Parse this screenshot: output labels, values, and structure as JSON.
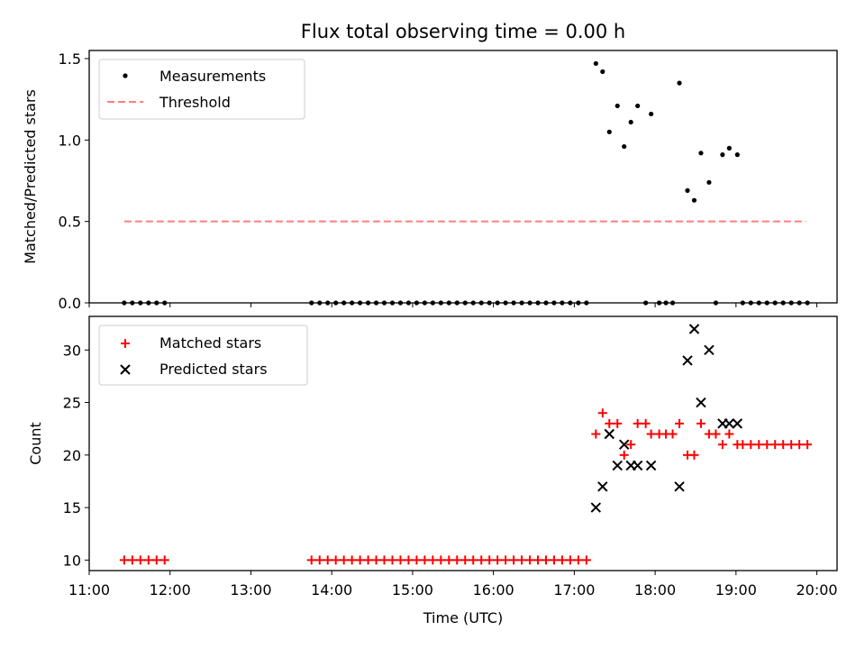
{
  "chart_data": [
    {
      "type": "scatter",
      "title": "Flux total observing time = 0.00 h",
      "xlabel": "",
      "ylabel": "Matched/Predicted stars",
      "xlim_hours": [
        11.0,
        20.25
      ],
      "ylim": [
        0,
        1.55
      ],
      "yticks": [
        "0.0",
        "0.5",
        "1.0",
        "1.5"
      ],
      "ytick_values": [
        0,
        0.5,
        1.0,
        1.5
      ],
      "legend_position": "upper-left",
      "legend": {
        "measurements": "Measurements",
        "threshold": "Threshold"
      },
      "colors": {
        "measurements": "#000000",
        "threshold": "#ff7f7f"
      },
      "threshold": {
        "value": 0.5,
        "x_start": "11:26",
        "x_end": "19:52"
      },
      "series": [
        {
          "name": "Measurements",
          "points": [
            [
              "11:26",
              0
            ],
            [
              "11:32",
              0
            ],
            [
              "11:38",
              0
            ],
            [
              "11:44",
              0
            ],
            [
              "11:50",
              0
            ],
            [
              "11:56",
              0
            ],
            [
              "13:45",
              0
            ],
            [
              "13:51",
              0
            ],
            [
              "13:57",
              0
            ],
            [
              "14:03",
              0
            ],
            [
              "14:09",
              0
            ],
            [
              "14:15",
              0
            ],
            [
              "14:21",
              0
            ],
            [
              "14:27",
              0
            ],
            [
              "14:33",
              0
            ],
            [
              "14:39",
              0
            ],
            [
              "14:45",
              0
            ],
            [
              "14:51",
              0
            ],
            [
              "14:57",
              0
            ],
            [
              "15:03",
              0
            ],
            [
              "15:09",
              0
            ],
            [
              "15:15",
              0
            ],
            [
              "15:21",
              0
            ],
            [
              "15:27",
              0
            ],
            [
              "15:33",
              0
            ],
            [
              "15:39",
              0
            ],
            [
              "15:45",
              0
            ],
            [
              "15:51",
              0
            ],
            [
              "15:57",
              0
            ],
            [
              "16:03",
              0
            ],
            [
              "16:09",
              0
            ],
            [
              "16:15",
              0
            ],
            [
              "16:21",
              0
            ],
            [
              "16:27",
              0
            ],
            [
              "16:33",
              0
            ],
            [
              "16:39",
              0
            ],
            [
              "16:45",
              0
            ],
            [
              "16:51",
              0
            ],
            [
              "16:57",
              0
            ],
            [
              "17:03",
              0
            ],
            [
              "17:09",
              0
            ],
            [
              "17:16",
              1.47
            ],
            [
              "17:21",
              1.42
            ],
            [
              "17:26",
              1.05
            ],
            [
              "17:32",
              1.21
            ],
            [
              "17:37",
              0.96
            ],
            [
              "17:42",
              1.11
            ],
            [
              "17:47",
              1.21
            ],
            [
              "17:53",
              0
            ],
            [
              "17:57",
              1.16
            ],
            [
              "18:03",
              0
            ],
            [
              "18:08",
              0
            ],
            [
              "18:13",
              0
            ],
            [
              "18:18",
              1.35
            ],
            [
              "18:24",
              0.69
            ],
            [
              "18:29",
              0.63
            ],
            [
              "18:34",
              0.92
            ],
            [
              "18:40",
              0.74
            ],
            [
              "18:45",
              0
            ],
            [
              "18:50",
              0.91
            ],
            [
              "18:55",
              0.95
            ],
            [
              "19:01",
              0.91
            ],
            [
              "19:05",
              0
            ],
            [
              "19:11",
              0
            ],
            [
              "19:17",
              0
            ],
            [
              "19:23",
              0
            ],
            [
              "19:29",
              0
            ],
            [
              "19:35",
              0
            ],
            [
              "19:41",
              0
            ],
            [
              "19:47",
              0
            ],
            [
              "19:53",
              0
            ]
          ]
        }
      ]
    },
    {
      "type": "scatter",
      "title": "",
      "xlabel": "Time (UTC)",
      "ylabel": "Count",
      "xlim_hours": [
        11.0,
        20.25
      ],
      "ylim": [
        9,
        33.2
      ],
      "yticks": [
        "10",
        "15",
        "20",
        "25",
        "30"
      ],
      "ytick_values": [
        10,
        15,
        20,
        25,
        30
      ],
      "xticks": [
        "11:00",
        "12:00",
        "13:00",
        "14:00",
        "15:00",
        "16:00",
        "17:00",
        "18:00",
        "19:00",
        "20:00"
      ],
      "legend_position": "upper-left",
      "colors": {
        "matched": "#ff0000",
        "predicted": "#000000"
      },
      "series": [
        {
          "name": "Matched stars",
          "points": [
            [
              "11:26",
              10
            ],
            [
              "11:32",
              10
            ],
            [
              "11:38",
              10
            ],
            [
              "11:44",
              10
            ],
            [
              "11:50",
              10
            ],
            [
              "11:56",
              10
            ],
            [
              "13:45",
              10
            ],
            [
              "13:51",
              10
            ],
            [
              "13:57",
              10
            ],
            [
              "14:03",
              10
            ],
            [
              "14:09",
              10
            ],
            [
              "14:15",
              10
            ],
            [
              "14:21",
              10
            ],
            [
              "14:27",
              10
            ],
            [
              "14:33",
              10
            ],
            [
              "14:39",
              10
            ],
            [
              "14:45",
              10
            ],
            [
              "14:51",
              10
            ],
            [
              "14:57",
              10
            ],
            [
              "15:03",
              10
            ],
            [
              "15:09",
              10
            ],
            [
              "15:15",
              10
            ],
            [
              "15:21",
              10
            ],
            [
              "15:27",
              10
            ],
            [
              "15:33",
              10
            ],
            [
              "15:39",
              10
            ],
            [
              "15:45",
              10
            ],
            [
              "15:51",
              10
            ],
            [
              "15:57",
              10
            ],
            [
              "16:03",
              10
            ],
            [
              "16:09",
              10
            ],
            [
              "16:15",
              10
            ],
            [
              "16:21",
              10
            ],
            [
              "16:27",
              10
            ],
            [
              "16:33",
              10
            ],
            [
              "16:39",
              10
            ],
            [
              "16:45",
              10
            ],
            [
              "16:51",
              10
            ],
            [
              "16:57",
              10
            ],
            [
              "17:03",
              10
            ],
            [
              "17:09",
              10
            ],
            [
              "17:16",
              22
            ],
            [
              "17:21",
              24
            ],
            [
              "17:26",
              23
            ],
            [
              "17:32",
              23
            ],
            [
              "17:37",
              20
            ],
            [
              "17:42",
              21
            ],
            [
              "17:47",
              23
            ],
            [
              "17:53",
              23
            ],
            [
              "17:57",
              22
            ],
            [
              "18:03",
              22
            ],
            [
              "18:08",
              22
            ],
            [
              "18:13",
              22
            ],
            [
              "18:18",
              23
            ],
            [
              "18:24",
              20
            ],
            [
              "18:29",
              20
            ],
            [
              "18:34",
              23
            ],
            [
              "18:40",
              22
            ],
            [
              "18:45",
              22
            ],
            [
              "18:50",
              21
            ],
            [
              "18:55",
              22
            ],
            [
              "19:01",
              21
            ],
            [
              "19:05",
              21
            ],
            [
              "19:11",
              21
            ],
            [
              "19:17",
              21
            ],
            [
              "19:23",
              21
            ],
            [
              "19:29",
              21
            ],
            [
              "19:35",
              21
            ],
            [
              "19:41",
              21
            ],
            [
              "19:47",
              21
            ],
            [
              "19:53",
              21
            ]
          ]
        },
        {
          "name": "Predicted stars",
          "points": [
            [
              "17:16",
              15
            ],
            [
              "17:21",
              17
            ],
            [
              "17:26",
              22
            ],
            [
              "17:32",
              19
            ],
            [
              "17:37",
              21
            ],
            [
              "17:42",
              19
            ],
            [
              "17:47",
              19
            ],
            [
              "17:57",
              19
            ],
            [
              "18:18",
              17
            ],
            [
              "18:24",
              29
            ],
            [
              "18:29",
              32
            ],
            [
              "18:34",
              25
            ],
            [
              "18:40",
              30
            ],
            [
              "18:50",
              23
            ],
            [
              "18:55",
              23
            ],
            [
              "19:01",
              23
            ]
          ]
        }
      ]
    }
  ]
}
